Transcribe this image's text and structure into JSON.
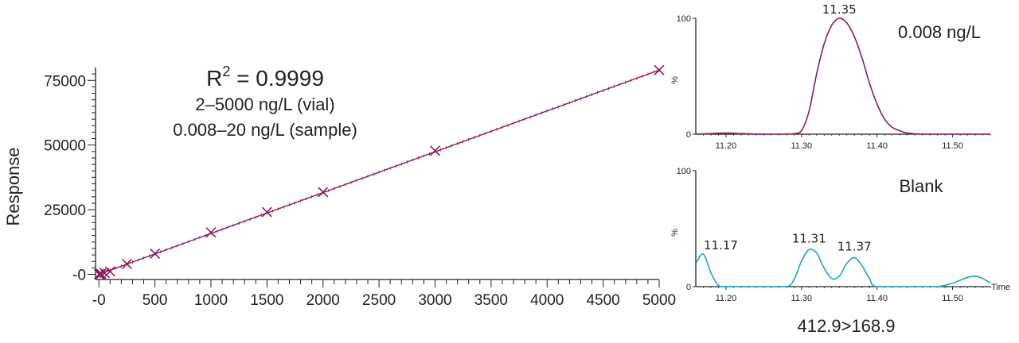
{
  "chart_data": [
    {
      "type": "scatter",
      "name": "calibration-curve",
      "ylabel": "Response",
      "xlabel": "",
      "annotations": {
        "r2_base": "R",
        "r2_sup": "2",
        "r2_value": " = 0.9999",
        "range_vial": "2–5000  ng/L (vial)",
        "range_sample": "0.008–20  ng/L (sample)"
      },
      "xlim": [
        -30,
        5000
      ],
      "ylim": [
        -2000,
        80000
      ],
      "x_ticks": [
        0,
        500,
        1000,
        1500,
        2000,
        2500,
        3000,
        3500,
        4000,
        4500,
        5000
      ],
      "x_tick_labels": [
        "-0",
        "500",
        "1000",
        "1500",
        "2000",
        "2500",
        "3000",
        "3500",
        "4000",
        "4500",
        "5000"
      ],
      "y_ticks": [
        0,
        25000,
        50000,
        75000
      ],
      "y_tick_labels": [
        "-0",
        "25000",
        "50000",
        "75000"
      ],
      "points": {
        "x": [
          2,
          5,
          10,
          20,
          50,
          100,
          250,
          500,
          1000,
          1500,
          2000,
          3000,
          5000
        ],
        "y": [
          20,
          60,
          120,
          220,
          520,
          1100,
          4000,
          8000,
          16200,
          24100,
          31800,
          47800,
          79000
        ]
      },
      "fit_line": {
        "x": [
          0,
          5000
        ],
        "y": [
          0,
          79000
        ]
      },
      "colors": {
        "series": "#8b1c5c",
        "axis": "#222222"
      }
    },
    {
      "type": "line",
      "name": "chromatogram-sample",
      "label": "0.008 ng/L",
      "peak_labels": [
        {
          "x": 11.35,
          "y": 100,
          "text": "11.35"
        }
      ],
      "ylabel": "%",
      "xlim": [
        11.16,
        11.55
      ],
      "ylim": [
        0,
        100
      ],
      "x_ticks": [
        11.2,
        11.3,
        11.4,
        11.5
      ],
      "x_tick_labels": [
        "11.20",
        "11.30",
        "11.40",
        "11.50"
      ],
      "y_ticks": [
        0,
        100
      ],
      "y_tick_labels": [
        "0",
        "100"
      ],
      "x": [
        11.16,
        11.18,
        11.2,
        11.22,
        11.25,
        11.28,
        11.29,
        11.3,
        11.31,
        11.32,
        11.33,
        11.34,
        11.35,
        11.36,
        11.37,
        11.38,
        11.39,
        11.4,
        11.41,
        11.42,
        11.43,
        11.44,
        11.46,
        11.5,
        11.55
      ],
      "y": [
        0,
        0.5,
        1,
        0.5,
        0,
        0,
        0.5,
        3,
        20,
        52,
        78,
        94,
        100,
        96,
        84,
        66,
        44,
        26,
        13,
        6,
        3,
        1,
        0,
        0,
        0
      ],
      "colors": {
        "series": "#8b1c5c"
      }
    },
    {
      "type": "line",
      "name": "chromatogram-blank",
      "label": "Blank",
      "xaxis_name": "Time",
      "transition": "412.9>168.9",
      "peak_labels": [
        {
          "x": 11.17,
          "y": 28,
          "text": "11.17"
        },
        {
          "x": 11.31,
          "y": 34,
          "text": "11.31"
        },
        {
          "x": 11.37,
          "y": 27,
          "text": "11.37"
        }
      ],
      "ylabel": "%",
      "xlim": [
        11.16,
        11.55
      ],
      "ylim": [
        0,
        100
      ],
      "x_ticks": [
        11.2,
        11.3,
        11.4,
        11.5
      ],
      "x_tick_labels": [
        "11.20",
        "11.30",
        "11.40",
        "11.50"
      ],
      "y_ticks": [
        0,
        100
      ],
      "y_tick_labels": [
        "0",
        "100"
      ],
      "x": [
        11.16,
        11.17,
        11.18,
        11.19,
        11.2,
        11.25,
        11.28,
        11.29,
        11.3,
        11.31,
        11.32,
        11.33,
        11.34,
        11.35,
        11.36,
        11.37,
        11.38,
        11.39,
        11.4,
        11.45,
        11.48,
        11.5,
        11.52,
        11.53,
        11.54,
        11.55
      ],
      "y": [
        20,
        28,
        12,
        1,
        0,
        0,
        0,
        6,
        22,
        32,
        29,
        16,
        7,
        9,
        20,
        25,
        18,
        7,
        0,
        0,
        0,
        3,
        8,
        9,
        7,
        3
      ],
      "colors": {
        "series": "#1aa6c8"
      }
    }
  ]
}
